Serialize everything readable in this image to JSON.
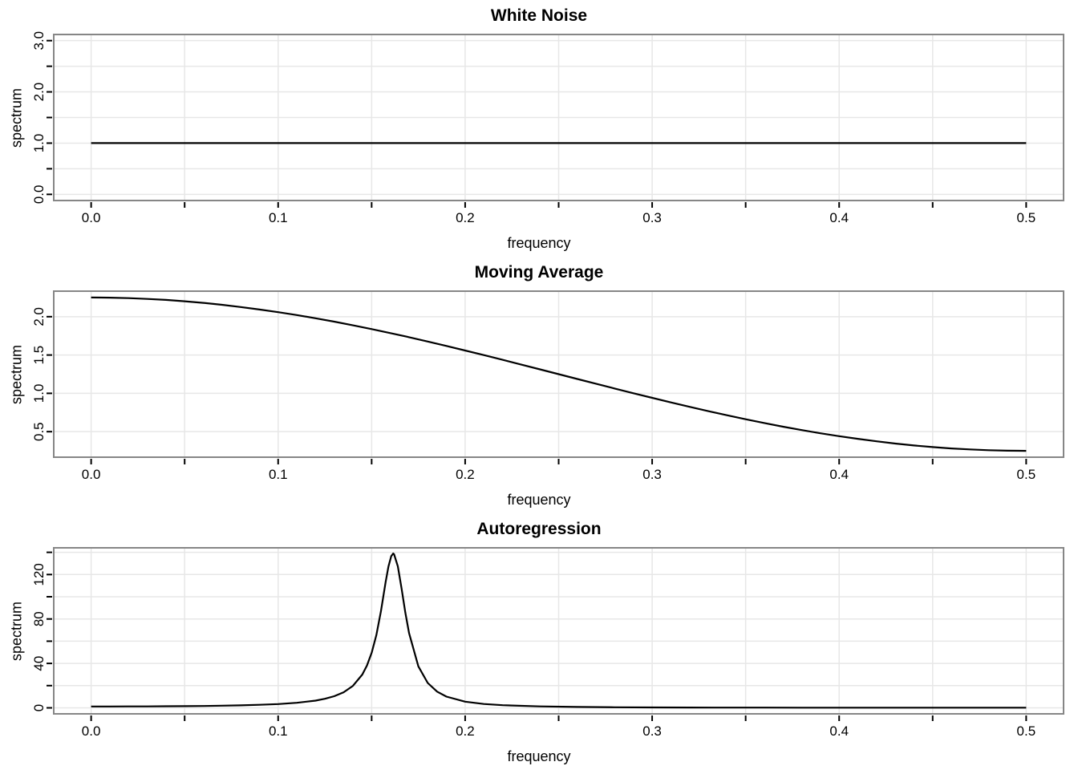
{
  "colors": {
    "background": "#ffffff",
    "line": "#000000",
    "grid": "#e7e7e7",
    "box_border": "#868686",
    "tick": "#000000",
    "text": "#000000"
  },
  "chart_data": [
    {
      "type": "line",
      "title": "White Noise",
      "xlabel": "frequency",
      "ylabel": "spectrum",
      "xlim": [
        -0.02,
        0.52
      ],
      "ylim": [
        -0.12,
        3.12
      ],
      "grid": true,
      "legend": "none",
      "x_ticks": [
        0,
        0.05,
        0.1,
        0.15,
        0.2,
        0.25,
        0.3,
        0.35,
        0.4,
        0.45,
        0.5
      ],
      "y_ticks": [
        0,
        0.5,
        1,
        1.5,
        2,
        2.5,
        3
      ],
      "x_labels": [
        {
          "value": 0,
          "label": "0.0"
        },
        {
          "value": 0.1,
          "label": "0.1"
        },
        {
          "value": 0.2,
          "label": "0.2"
        },
        {
          "value": 0.3,
          "label": "0.3"
        },
        {
          "value": 0.4,
          "label": "0.4"
        },
        {
          "value": 0.5,
          "label": "0.5"
        }
      ],
      "y_labels": [
        {
          "value": 0,
          "label": "0.0"
        },
        {
          "value": 1,
          "label": "1.0"
        },
        {
          "value": 2,
          "label": "2.0"
        },
        {
          "value": 3,
          "label": "3.0"
        }
      ],
      "series": [
        {
          "name": "white-noise-spectrum",
          "points": [
            [
              0,
              1
            ],
            [
              0.5,
              1
            ]
          ]
        }
      ]
    },
    {
      "type": "line",
      "title": "Moving Average",
      "xlabel": "frequency",
      "ylabel": "spectrum",
      "xlim": [
        -0.02,
        0.52
      ],
      "ylim": [
        0.1668,
        2.3332
      ],
      "grid": true,
      "legend": "none",
      "x_ticks": [
        0,
        0.05,
        0.1,
        0.15,
        0.2,
        0.25,
        0.3,
        0.35,
        0.4,
        0.45,
        0.5
      ],
      "y_ticks": [
        0.5,
        1,
        1.5,
        2
      ],
      "x_labels": [
        {
          "value": 0,
          "label": "0.0"
        },
        {
          "value": 0.1,
          "label": "0.1"
        },
        {
          "value": 0.2,
          "label": "0.2"
        },
        {
          "value": 0.3,
          "label": "0.3"
        },
        {
          "value": 0.4,
          "label": "0.4"
        },
        {
          "value": 0.5,
          "label": "0.5"
        }
      ],
      "y_labels": [
        {
          "value": 0.5,
          "label": "0.5"
        },
        {
          "value": 1,
          "label": "1.0"
        },
        {
          "value": 1.5,
          "label": "1.5"
        },
        {
          "value": 2,
          "label": "2.0"
        }
      ],
      "series": [
        {
          "name": "moving-average-spectrum",
          "points": [
            [
              0,
              2.25
            ],
            [
              0.01,
              2.248
            ],
            [
              0.02,
              2.242
            ],
            [
              0.03,
              2.232
            ],
            [
              0.04,
              2.219
            ],
            [
              0.05,
              2.201
            ],
            [
              0.06,
              2.18
            ],
            [
              0.07,
              2.155
            ],
            [
              0.08,
              2.126
            ],
            [
              0.09,
              2.094
            ],
            [
              0.1,
              2.059
            ],
            [
              0.11,
              2.021
            ],
            [
              0.12,
              1.979
            ],
            [
              0.13,
              1.935
            ],
            [
              0.14,
              1.887
            ],
            [
              0.15,
              1.838
            ],
            [
              0.16,
              1.786
            ],
            [
              0.17,
              1.732
            ],
            [
              0.18,
              1.676
            ],
            [
              0.19,
              1.618
            ],
            [
              0.2,
              1.559
            ],
            [
              0.21,
              1.499
            ],
            [
              0.22,
              1.437
            ],
            [
              0.23,
              1.375
            ],
            [
              0.24,
              1.313
            ],
            [
              0.25,
              1.25
            ],
            [
              0.26,
              1.187
            ],
            [
              0.27,
              1.125
            ],
            [
              0.28,
              1.063
            ],
            [
              0.29,
              1.001
            ],
            [
              0.3,
              0.941
            ],
            [
              0.31,
              0.882
            ],
            [
              0.32,
              0.824
            ],
            [
              0.33,
              0.768
            ],
            [
              0.34,
              0.714
            ],
            [
              0.35,
              0.662
            ],
            [
              0.36,
              0.613
            ],
            [
              0.37,
              0.565
            ],
            [
              0.38,
              0.521
            ],
            [
              0.39,
              0.479
            ],
            [
              0.4,
              0.441
            ],
            [
              0.41,
              0.406
            ],
            [
              0.42,
              0.374
            ],
            [
              0.43,
              0.345
            ],
            [
              0.44,
              0.32
            ],
            [
              0.45,
              0.299
            ],
            [
              0.46,
              0.281
            ],
            [
              0.47,
              0.268
            ],
            [
              0.48,
              0.258
            ],
            [
              0.49,
              0.252
            ],
            [
              0.5,
              0.25
            ]
          ]
        }
      ]
    },
    {
      "type": "line",
      "title": "Autoregression",
      "xlabel": "frequency",
      "ylabel": "spectrum",
      "xlim": [
        -0.02,
        0.52
      ],
      "ylim": [
        -5.41,
        144.05
      ],
      "grid": true,
      "legend": "none",
      "x_ticks": [
        0,
        0.05,
        0.1,
        0.15,
        0.2,
        0.25,
        0.3,
        0.35,
        0.4,
        0.45,
        0.5
      ],
      "y_ticks": [
        0,
        20,
        40,
        60,
        80,
        100,
        120,
        140
      ],
      "x_labels": [
        {
          "value": 0,
          "label": "0.0"
        },
        {
          "value": 0.1,
          "label": "0.1"
        },
        {
          "value": 0.2,
          "label": "0.2"
        },
        {
          "value": 0.3,
          "label": "0.3"
        },
        {
          "value": 0.4,
          "label": "0.4"
        },
        {
          "value": 0.5,
          "label": "0.5"
        }
      ],
      "y_labels": [
        {
          "value": 0,
          "label": "0"
        },
        {
          "value": 40,
          "label": "40"
        },
        {
          "value": 80,
          "label": "80"
        },
        {
          "value": 120,
          "label": "120"
        }
      ],
      "series": [
        {
          "name": "autoregression-spectrum",
          "points": [
            [
              0,
              1.235
            ],
            [
              0.01,
              1.245
            ],
            [
              0.02,
              1.277
            ],
            [
              0.03,
              1.332
            ],
            [
              0.04,
              1.415
            ],
            [
              0.05,
              1.533
            ],
            [
              0.06,
              1.698
            ],
            [
              0.07,
              1.927
            ],
            [
              0.08,
              2.25
            ],
            [
              0.09,
              2.718
            ],
            [
              0.1,
              3.425
            ],
            [
              0.11,
              4.559
            ],
            [
              0.12,
              6.538
            ],
            [
              0.125,
              8.131
            ],
            [
              0.13,
              10.448
            ],
            [
              0.135,
              14.0
            ],
            [
              0.14,
              19.76
            ],
            [
              0.145,
              29.99
            ],
            [
              0.1475,
              38.1
            ],
            [
              0.15,
              49.58
            ],
            [
              0.1525,
              65.4
            ],
            [
              0.155,
              87.2
            ],
            [
              0.1575,
              113.3
            ],
            [
              0.159,
              127.2
            ],
            [
              0.1605,
              136.6
            ],
            [
              0.1615,
              138.9
            ],
            [
              0.162,
              138.3
            ],
            [
              0.164,
              127.4
            ],
            [
              0.166,
              107.3
            ],
            [
              0.168,
              85.9
            ],
            [
              0.17,
              67.3
            ],
            [
              0.175,
              37.3
            ],
            [
              0.18,
              22.4
            ],
            [
              0.185,
              14.6
            ],
            [
              0.19,
              10.1
            ],
            [
              0.2,
              5.571
            ],
            [
              0.21,
              3.477
            ],
            [
              0.22,
              2.356
            ],
            [
              0.24,
              1.273
            ],
            [
              0.26,
              0.792
            ],
            [
              0.28,
              0.541
            ],
            [
              0.3,
              0.396
            ],
            [
              0.32,
              0.305
            ],
            [
              0.34,
              0.245
            ],
            [
              0.36,
              0.204
            ],
            [
              0.38,
              0.176
            ],
            [
              0.4,
              0.155
            ],
            [
              0.42,
              0.141
            ],
            [
              0.44,
              0.131
            ],
            [
              0.46,
              0.124
            ],
            [
              0.48,
              0.12
            ],
            [
              0.5,
              0.119
            ]
          ]
        }
      ]
    }
  ]
}
